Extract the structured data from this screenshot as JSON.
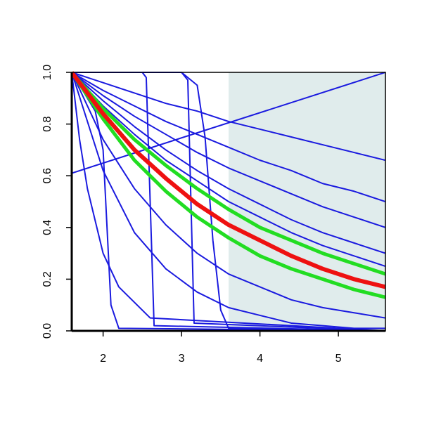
{
  "chart_data": {
    "type": "line",
    "x": [
      1.6,
      2.0,
      2.4,
      2.8,
      3.2,
      3.6,
      4.0,
      4.4,
      4.8,
      5.2,
      5.6
    ],
    "xlim": [
      1.6,
      5.6
    ],
    "ylim": [
      0,
      1
    ],
    "xticks": [
      2,
      3,
      4,
      5
    ],
    "yticks": [
      {
        "value": 0,
        "label": "0.0"
      },
      0.2,
      0.4,
      0.6,
      0.8,
      {
        "value": 1,
        "label": "1.0"
      }
    ],
    "grid": false,
    "shaded_region": {
      "xlim": [
        3.6,
        5.6
      ],
      "color": "#e0ecec"
    },
    "series": [
      {
        "color": "#1a1adf",
        "line_width": 2,
        "values": [
          1,
          0.96,
          0.92,
          0.88,
          0.85,
          0.81,
          0.78,
          0.75,
          0.72,
          0.69,
          0.66
        ]
      },
      {
        "color": "#1a1adf",
        "line_width": 2,
        "values": [
          1,
          0.93,
          0.87,
          0.81,
          0.76,
          0.71,
          0.66,
          0.62,
          0.57,
          0.54,
          0.5
        ]
      },
      {
        "color": "#1a1adf",
        "line_width": 2,
        "values": [
          1,
          0.91,
          0.83,
          0.76,
          0.69,
          0.63,
          0.58,
          0.53,
          0.48,
          0.44,
          0.4
        ]
      },
      {
        "color": "#1a1adf",
        "line_width": 2,
        "values": [
          1,
          0.89,
          0.79,
          0.7,
          0.62,
          0.55,
          0.49,
          0.43,
          0.38,
          0.34,
          0.3
        ]
      },
      {
        "color": "#1a1adf",
        "line_width": 2,
        "values": [
          1,
          0.87,
          0.76,
          0.66,
          0.58,
          0.5,
          0.44,
          0.38,
          0.33,
          0.29,
          0.25
        ]
      },
      {
        "color": "#1a1adf",
        "line_width": 2,
        "values": [
          1,
          0.74,
          0.55,
          0.41,
          0.3,
          0.22,
          0.17,
          0.12,
          0.09,
          0.07,
          0.05
        ]
      },
      {
        "color": "#1a1adf",
        "line_width": 2,
        "values": [
          1,
          0.62,
          0.38,
          0.24,
          0.15,
          0.09,
          0.06,
          0.03,
          0.02,
          0.01,
          0.01
        ]
      },
      {
        "color": "#1a1adf",
        "line_width": 2,
        "x": [
          1.6,
          1.7,
          1.8,
          2.0,
          2.2,
          2.6,
          5.6
        ],
        "values": [
          1,
          0.74,
          0.55,
          0.3,
          0.17,
          0.05,
          0
        ]
      },
      {
        "color": "#1a1adf",
        "line_width": 2,
        "x": [
          1.6,
          5.6
        ],
        "values": [
          0.61,
          1.0
        ]
      },
      {
        "color": "#1a1adf",
        "line_width": 2,
        "x": [
          1.6,
          2.5,
          2.55,
          2.6,
          2.65,
          5.6
        ],
        "values": [
          1,
          1,
          0.98,
          0.5,
          0.02,
          0
        ]
      },
      {
        "color": "#1a1adf",
        "line_width": 2,
        "x": [
          1.6,
          3.0,
          3.08,
          3.12,
          3.16,
          5.6
        ],
        "values": [
          1,
          1,
          0.97,
          0.5,
          0.03,
          0
        ]
      },
      {
        "color": "#1a1adf",
        "line_width": 2,
        "x": [
          1.6,
          3.0,
          3.2,
          3.3,
          3.4,
          3.5,
          3.6,
          5.6
        ],
        "values": [
          1,
          1,
          0.95,
          0.75,
          0.35,
          0.08,
          0.01,
          0
        ]
      },
      {
        "color": "#1a1adf",
        "line_width": 2,
        "x": [
          1.6,
          1.9,
          2.0,
          2.05,
          2.1,
          2.2,
          5.6
        ],
        "values": [
          1,
          0.85,
          0.7,
          0.4,
          0.1,
          0.01,
          0
        ]
      },
      {
        "color": "#22dd22",
        "line_width": 5,
        "values": [
          1,
          0.86,
          0.74,
          0.64,
          0.55,
          0.47,
          0.4,
          0.35,
          0.3,
          0.26,
          0.22
        ]
      },
      {
        "color": "#22dd22",
        "line_width": 5,
        "values": [
          1,
          0.82,
          0.66,
          0.54,
          0.44,
          0.36,
          0.29,
          0.24,
          0.2,
          0.16,
          0.13
        ]
      },
      {
        "color": "#ee1111",
        "line_width": 6,
        "values": [
          1,
          0.84,
          0.7,
          0.59,
          0.49,
          0.41,
          0.35,
          0.29,
          0.24,
          0.2,
          0.17
        ]
      }
    ]
  }
}
